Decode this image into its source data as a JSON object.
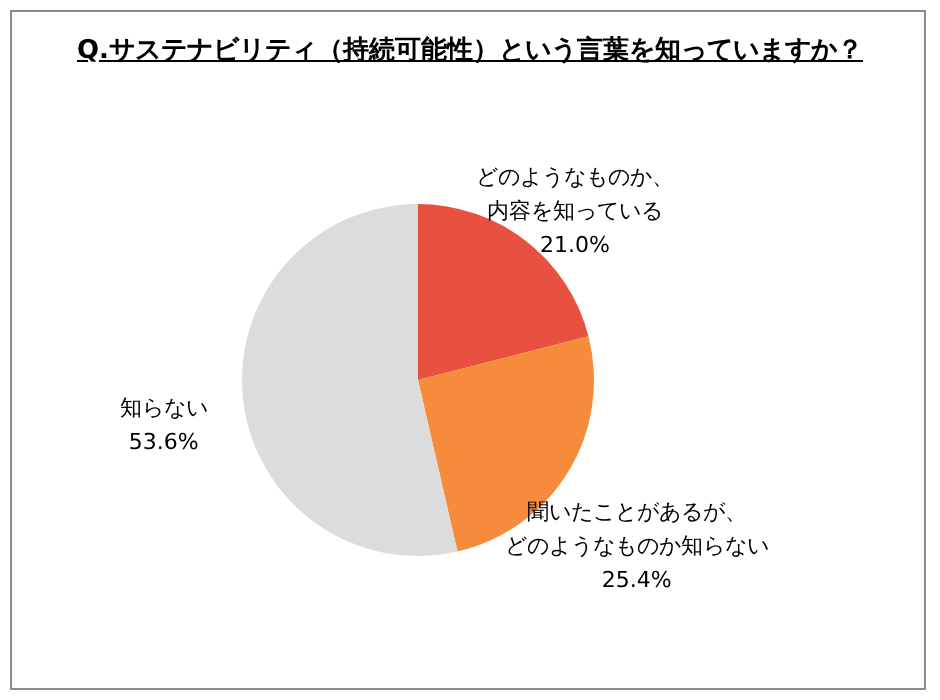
{
  "chart_data": {
    "type": "pie",
    "title": "Q.サステナビリティ（持続可能性）という言葉を知っていますか？",
    "categories": [
      "どのようなものか、内容を知っている",
      "聞いたことがあるが、どのようなものか知らない",
      "知らない"
    ],
    "values": [
      21.0,
      25.4,
      53.6
    ],
    "value_labels": [
      "21.0%",
      "25.4%",
      "53.6%"
    ],
    "colors": [
      "#e8513f",
      "#f58b3b",
      "#dcdcdc"
    ]
  }
}
